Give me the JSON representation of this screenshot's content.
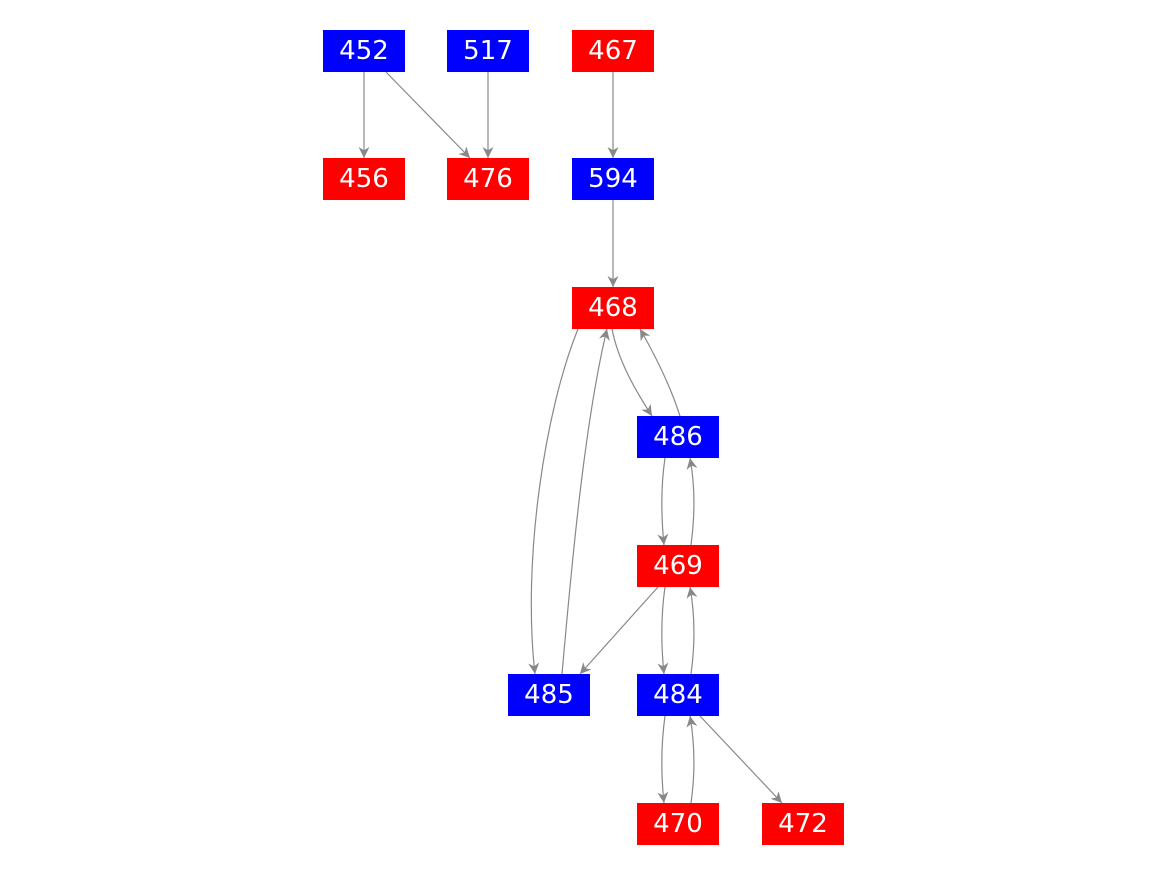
{
  "colors": {
    "blue": "#0000ff",
    "red": "#ff0000",
    "edge": "#888888",
    "label": "#ffffff"
  },
  "nodes": [
    {
      "id": "452",
      "label": "452",
      "color": "blue"
    },
    {
      "id": "517",
      "label": "517",
      "color": "blue"
    },
    {
      "id": "467",
      "label": "467",
      "color": "red"
    },
    {
      "id": "456",
      "label": "456",
      "color": "red"
    },
    {
      "id": "476",
      "label": "476",
      "color": "red"
    },
    {
      "id": "594",
      "label": "594",
      "color": "blue"
    },
    {
      "id": "468",
      "label": "468",
      "color": "red"
    },
    {
      "id": "486",
      "label": "486",
      "color": "blue"
    },
    {
      "id": "469",
      "label": "469",
      "color": "red"
    },
    {
      "id": "485",
      "label": "485",
      "color": "blue"
    },
    {
      "id": "484",
      "label": "484",
      "color": "blue"
    },
    {
      "id": "470",
      "label": "470",
      "color": "red"
    },
    {
      "id": "472",
      "label": "472",
      "color": "red"
    }
  ],
  "edges": [
    {
      "from": "452",
      "to": "456"
    },
    {
      "from": "452",
      "to": "476"
    },
    {
      "from": "517",
      "to": "476"
    },
    {
      "from": "467",
      "to": "594"
    },
    {
      "from": "594",
      "to": "468"
    },
    {
      "from": "468",
      "to": "485"
    },
    {
      "from": "485",
      "to": "468"
    },
    {
      "from": "468",
      "to": "486"
    },
    {
      "from": "486",
      "to": "468"
    },
    {
      "from": "486",
      "to": "469"
    },
    {
      "from": "469",
      "to": "486"
    },
    {
      "from": "469",
      "to": "485"
    },
    {
      "from": "469",
      "to": "484"
    },
    {
      "from": "484",
      "to": "469"
    },
    {
      "from": "484",
      "to": "470"
    },
    {
      "from": "470",
      "to": "484"
    },
    {
      "from": "484",
      "to": "472"
    }
  ]
}
